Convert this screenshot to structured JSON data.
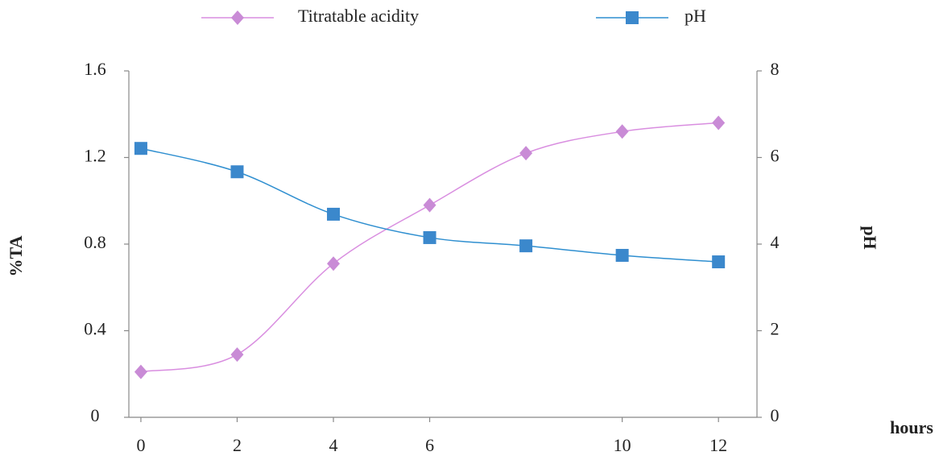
{
  "chart_data": {
    "type": "line",
    "x": [
      0,
      2,
      4,
      6,
      8,
      10,
      12
    ],
    "series": [
      {
        "name": "Titratable acidity",
        "color": "#d98ee0",
        "marker_color": "#c98bd6",
        "marker": "diamond",
        "values": [
          0.21,
          0.29,
          0.71,
          0.98,
          1.22,
          1.32,
          1.36
        ]
      },
      {
        "name": "pH",
        "color": "#2f8fd0",
        "marker_color": "#3b88cc",
        "marker": "square",
        "axis": "y2",
        "values": [
          6.21,
          5.67,
          4.69,
          4.15,
          3.96,
          3.74,
          3.59
        ]
      }
    ],
    "xlim": [
      -0.25,
      12.8
    ],
    "xticks": [
      0,
      2,
      4,
      6,
      10,
      12
    ],
    "ylim": [
      0,
      1.6
    ],
    "yticks": [
      0,
      0.4,
      0.8,
      1.2,
      1.6
    ],
    "y2lim": [
      0,
      8
    ],
    "y2ticks": [
      0,
      2,
      4,
      6,
      8
    ],
    "y_label": "%TA",
    "y2_label": "pH",
    "x_label": "hours",
    "smooth": true,
    "grid": false
  }
}
